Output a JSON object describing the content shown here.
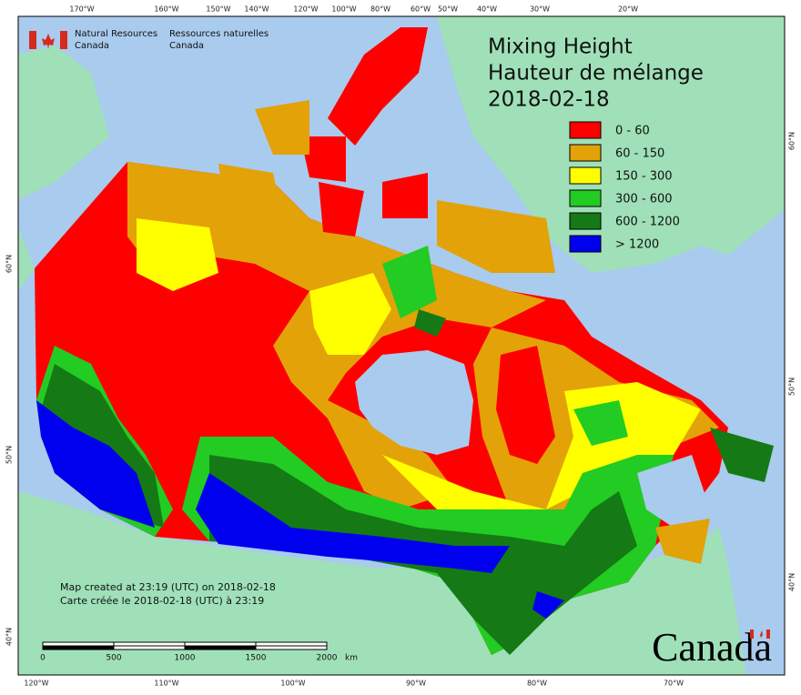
{
  "header": {
    "dept_en": [
      "Natural Resources",
      "Canada"
    ],
    "dept_fr": [
      "Ressources naturelles",
      "Canada"
    ]
  },
  "title": [
    "Mixing Height",
    "Hauteur de mélange",
    "2018-02-18"
  ],
  "legend": [
    {
      "label": "0 - 60",
      "color": "#ff0000"
    },
    {
      "label": "60 - 150",
      "color": "#e3a208"
    },
    {
      "label": "150 - 300",
      "color": "#ffff00"
    },
    {
      "label": "300 - 600",
      "color": "#22cc22"
    },
    {
      "label": "600 - 1200",
      "color": "#157a15"
    },
    {
      "label": "> 1200",
      "color": "#0000ee"
    }
  ],
  "notes": [
    "Map created at 23:19 (UTC) on 2018-02-18",
    "Carte créée le 2018-02-18 (UTC) à 23:19"
  ],
  "scale": {
    "ticks": [
      0,
      500,
      1000,
      1500,
      2000
    ],
    "unit": "km"
  },
  "graticule": {
    "top": [
      "170°W",
      "160°W",
      "150°W",
      "140°W",
      "120°W",
      "100°W",
      "80°W",
      "60°W",
      "50°W",
      "40°W",
      "30°W",
      "20°W"
    ],
    "bottom": [
      "120°W",
      "110°W",
      "100°W",
      "90°W",
      "80°W",
      "70°W"
    ],
    "left": [
      "60°N",
      "50°N",
      "40°N"
    ],
    "right": [
      "60°N",
      "50°N",
      "40°N"
    ]
  },
  "wordmark": "Canada"
}
